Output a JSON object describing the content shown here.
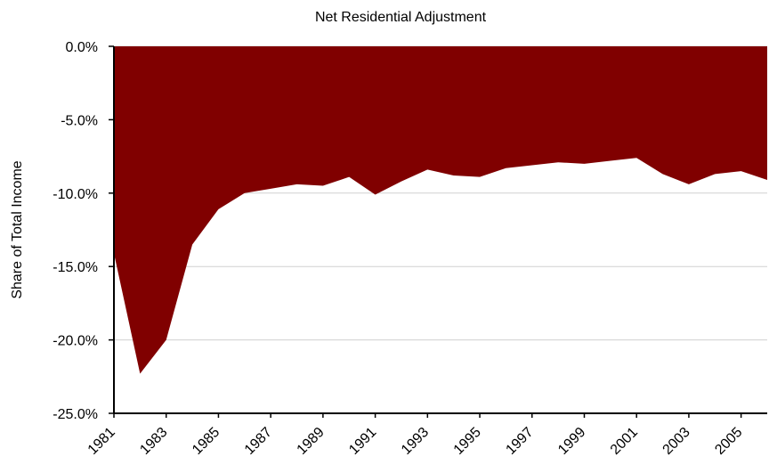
{
  "chart_data": {
    "type": "area",
    "title": "Net Residential Adjustment",
    "y_label": "Share of Total Income",
    "x": [
      1981,
      1982,
      1983,
      1984,
      1985,
      1986,
      1987,
      1988,
      1989,
      1990,
      1991,
      1992,
      1993,
      1994,
      1995,
      1996,
      1997,
      1998,
      1999,
      2000,
      2001,
      2002,
      2003,
      2004,
      2005,
      2006
    ],
    "values": [
      -14.1,
      -22.3,
      -20.0,
      -13.5,
      -11.1,
      -10.0,
      -9.7,
      -9.4,
      -9.5,
      -8.9,
      -10.1,
      -9.2,
      -8.4,
      -8.8,
      -8.9,
      -8.3,
      -8.1,
      -7.9,
      -8.0,
      -7.8,
      -7.6,
      -8.7,
      -9.4,
      -8.7,
      -8.5,
      -9.1
    ],
    "color": "#800000",
    "xlim": [
      1981,
      2006
    ],
    "xticks": [
      1981,
      1983,
      1985,
      1987,
      1989,
      1991,
      1993,
      1995,
      1997,
      1999,
      2001,
      2003,
      2005
    ],
    "ylim": [
      -25,
      0
    ],
    "yticks": [
      {
        "value": 0,
        "label": "0.0%"
      },
      {
        "value": -5,
        "label": "-5.0%"
      },
      {
        "value": -10,
        "label": "-10.0%"
      },
      {
        "value": -15,
        "label": "-15.0%"
      },
      {
        "value": -20,
        "label": "-20.0%"
      },
      {
        "value": -25,
        "label": "-25.0%"
      }
    ],
    "grid": true
  }
}
